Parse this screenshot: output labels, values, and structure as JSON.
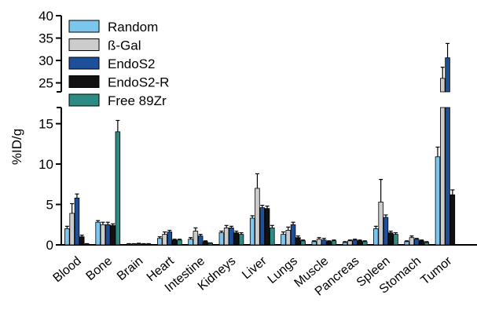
{
  "chart_data": {
    "type": "bar",
    "ylabel": "%ID/g",
    "y_axis_break": {
      "lower_range": [
        0,
        17
      ],
      "upper_range": [
        23,
        40
      ]
    },
    "lower_ticks": [
      0,
      5,
      10,
      15
    ],
    "upper_ticks": [
      25,
      30,
      35,
      40
    ],
    "legend_placement": "top-left",
    "categories": [
      "Blood",
      "Bone",
      "Brain",
      "Heart",
      "Intestine",
      "Kidneys",
      "Liver",
      "Lungs",
      "Muscle",
      "Pancreas",
      "Spleen",
      "Stomach",
      "Tumor"
    ],
    "series": [
      {
        "name": "Random",
        "color": "#7cc6ee",
        "values": [
          2.0,
          2.8,
          0.1,
          0.8,
          0.7,
          1.5,
          3.3,
          1.3,
          0.4,
          0.3,
          2.0,
          0.4,
          10.9
        ],
        "errors": [
          0.3,
          0.2,
          0.05,
          0.2,
          0.2,
          0.2,
          0.3,
          0.3,
          0.1,
          0.1,
          0.3,
          0.1,
          1.2
        ]
      },
      {
        "name": "ß-Gal",
        "color": "#cccccc",
        "values": [
          3.9,
          2.5,
          0.1,
          1.3,
          1.7,
          2.1,
          7.0,
          1.8,
          0.7,
          0.5,
          5.3,
          0.9,
          26.0
        ],
        "errors": [
          1.2,
          0.3,
          0.05,
          0.3,
          0.4,
          0.3,
          1.8,
          0.4,
          0.2,
          0.1,
          2.8,
          0.2,
          2.5
        ]
      },
      {
        "name": "EndoS2",
        "color": "#1d4f9a",
        "values": [
          5.8,
          2.5,
          0.15,
          1.6,
          1.1,
          2.1,
          4.6,
          2.5,
          0.6,
          0.6,
          3.4,
          0.7,
          30.6
        ],
        "errors": [
          0.5,
          0.3,
          0.05,
          0.2,
          0.2,
          0.2,
          0.3,
          0.3,
          0.2,
          0.1,
          0.3,
          0.1,
          3.2
        ]
      },
      {
        "name": "EndoS2-R",
        "color": "#111111",
        "values": [
          1.0,
          2.4,
          0.1,
          0.6,
          0.4,
          1.5,
          4.5,
          0.9,
          0.4,
          0.5,
          1.5,
          0.5,
          6.2
        ],
        "errors": [
          0.2,
          0.2,
          0.05,
          0.1,
          0.1,
          0.2,
          0.3,
          0.2,
          0.1,
          0.1,
          0.2,
          0.1,
          0.6
        ]
      },
      {
        "name": "Free 89Zr",
        "color": "#2e8b83",
        "values": [
          0.1,
          14.0,
          0.1,
          0.6,
          0.2,
          1.3,
          2.1,
          0.5,
          0.5,
          0.4,
          1.3,
          0.3,
          null
        ],
        "errors": [
          0.05,
          1.4,
          0.05,
          0.1,
          0.05,
          0.2,
          0.3,
          0.1,
          0.1,
          0.1,
          0.2,
          0.1,
          null
        ]
      }
    ]
  }
}
